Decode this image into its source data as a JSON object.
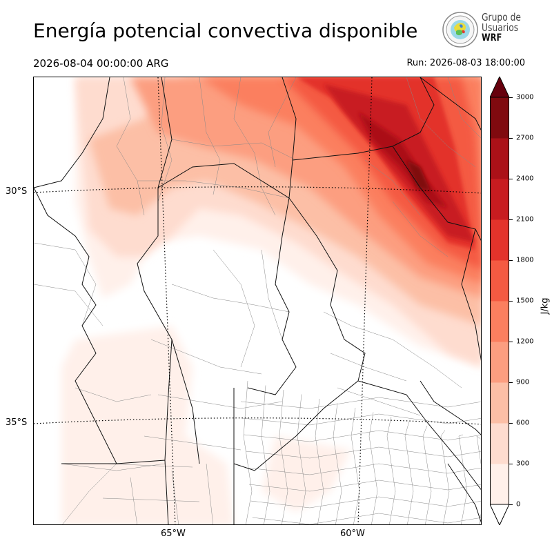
{
  "header": {
    "title": "Energía potencial convectiva disponible",
    "valid_time": "2026-08-04 00:00:00 ARG",
    "run_time": "Run: 2026-08-03 18:00:00"
  },
  "logo": {
    "line1": "Grupo de",
    "line2": "Usuarios",
    "line3": "WRF"
  },
  "map": {
    "latitude_labels": [
      "30°S",
      "35°S"
    ],
    "longitude_labels": [
      "65°W",
      "60°W"
    ],
    "field": "CAPE"
  },
  "colorbar": {
    "unit": "J/kg",
    "ticks": [
      "0",
      "300",
      "600",
      "900",
      "1200",
      "1500",
      "1800",
      "2100",
      "2400",
      "2700",
      "3000"
    ],
    "colors": [
      "#fff0ea",
      "#fedccf",
      "#fcbfa6",
      "#fc9e80",
      "#fb7f5f",
      "#f45a42",
      "#e3332b",
      "#c81c20",
      "#ab1118",
      "#800a0f"
    ],
    "over_color": "#67000d",
    "under_color": "#ffffff",
    "extend": "both"
  }
}
